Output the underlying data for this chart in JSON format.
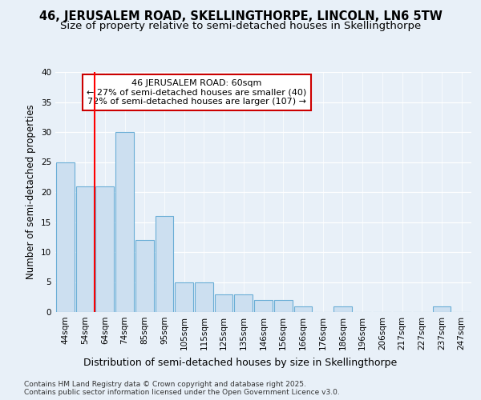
{
  "title1": "46, JERUSALEM ROAD, SKELLINGTHORPE, LINCOLN, LN6 5TW",
  "title2": "Size of property relative to semi-detached houses in Skellingthorpe",
  "xlabel": "Distribution of semi-detached houses by size in Skellingthorpe",
  "ylabel": "Number of semi-detached properties",
  "categories": [
    "44sqm",
    "54sqm",
    "64sqm",
    "74sqm",
    "85sqm",
    "95sqm",
    "105sqm",
    "115sqm",
    "125sqm",
    "135sqm",
    "146sqm",
    "156sqm",
    "166sqm",
    "176sqm",
    "186sqm",
    "196sqm",
    "206sqm",
    "217sqm",
    "227sqm",
    "237sqm",
    "247sqm"
  ],
  "values": [
    25,
    21,
    21,
    30,
    12,
    16,
    5,
    5,
    3,
    3,
    2,
    2,
    1,
    0,
    1,
    0,
    0,
    0,
    0,
    1,
    0
  ],
  "bar_color": "#ccdff0",
  "bar_edge_color": "#6aaed6",
  "red_line_x": 1.5,
  "annotation_text": "46 JERUSALEM ROAD: 60sqm\n← 27% of semi-detached houses are smaller (40)\n72% of semi-detached houses are larger (107) →",
  "annotation_box_color": "#ffffff",
  "annotation_box_edge_color": "#cc0000",
  "ylim": [
    0,
    40
  ],
  "yticks": [
    0,
    5,
    10,
    15,
    20,
    25,
    30,
    35,
    40
  ],
  "background_color": "#e8f0f8",
  "plot_bg_color": "#e8f0f8",
  "footer_text": "Contains HM Land Registry data © Crown copyright and database right 2025.\nContains public sector information licensed under the Open Government Licence v3.0.",
  "title1_fontsize": 10.5,
  "title2_fontsize": 9.5,
  "xlabel_fontsize": 9,
  "ylabel_fontsize": 8.5,
  "tick_fontsize": 7.5,
  "footer_fontsize": 6.5,
  "annotation_fontsize": 8
}
